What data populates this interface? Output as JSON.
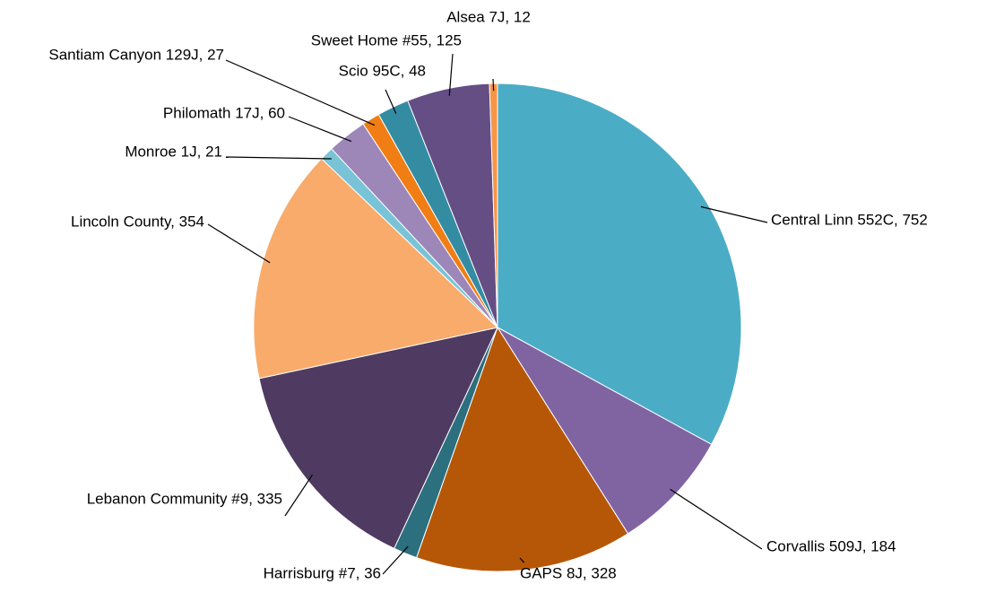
{
  "chart_data": {
    "type": "pie",
    "values": [
      752,
      184,
      328,
      36,
      335,
      354,
      21,
      60,
      27,
      48,
      125,
      12
    ],
    "value_labels": [
      "Central Linn 552C, 752",
      "Corvallis 509J, 184",
      "GAPS 8J, 328",
      "Harrisburg #7, 36",
      "Lebanon Community #9, 335",
      "Lincoln County, 354",
      "Monroe 1J, 21",
      "Philomath 17J, 60",
      "Santiam Canyon 129J, 27",
      "Scio 95C, 48",
      "Sweet Home #55, 125",
      "Alsea 7J, 12"
    ],
    "colors": [
      "#4bacc6",
      "#8064a2",
      "#b65708",
      "#2c6f7f",
      "#4f3b62",
      "#f9ab6b",
      "#79c3d6",
      "#9d87b8",
      "#f07e15",
      "#348ca2",
      "#644e84",
      "#f79646"
    ]
  }
}
